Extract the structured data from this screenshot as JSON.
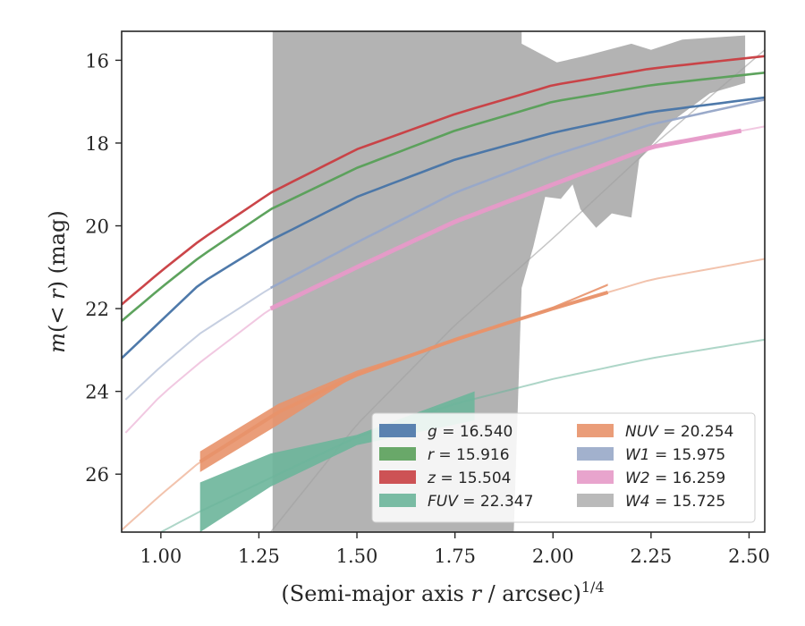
{
  "chart_data": {
    "type": "line",
    "xlabel": "(Semi-major axis r / arcsec)^1/4",
    "ylabel": "m(< r) (mag)",
    "xlim": [
      0.9,
      2.54
    ],
    "ylim": [
      27.4,
      15.3
    ],
    "y_inverted": true,
    "grid": false,
    "legend_location": "lower-right",
    "x_ticks": [
      "1.00",
      "1.25",
      "1.50",
      "1.75",
      "2.00",
      "2.25",
      "2.50"
    ],
    "y_ticks": [
      "16",
      "18",
      "20",
      "22",
      "24",
      "26"
    ],
    "series": [
      {
        "name": "g",
        "label_value": "16.540",
        "color": "#4a76a8",
        "mag_total": 16.54,
        "curve_x": [
          0.9,
          1.0,
          1.1,
          1.28,
          1.5,
          1.75,
          2.0,
          2.25,
          2.54
        ],
        "curve_y": [
          23.2,
          22.3,
          21.4,
          20.35,
          19.3,
          18.4,
          17.75,
          17.25,
          16.9
        ],
        "measured_x_range": [
          0.9,
          2.54
        ]
      },
      {
        "name": "r",
        "label_value": "15.916",
        "color": "#5aa05a",
        "mag_total": 15.916,
        "curve_x": [
          0.9,
          1.0,
          1.1,
          1.28,
          1.5,
          1.75,
          2.0,
          2.25,
          2.54
        ],
        "curve_y": [
          22.3,
          21.5,
          20.75,
          19.6,
          18.6,
          17.7,
          17.0,
          16.6,
          16.3
        ],
        "measured_x_range": [
          0.9,
          2.54
        ]
      },
      {
        "name": "z",
        "label_value": "15.504",
        "color": "#c94044",
        "mag_total": 15.504,
        "curve_x": [
          0.9,
          1.0,
          1.1,
          1.28,
          1.5,
          1.75,
          2.0,
          2.25,
          2.54
        ],
        "curve_y": [
          21.9,
          21.1,
          20.35,
          19.2,
          18.15,
          17.3,
          16.6,
          16.2,
          15.9
        ],
        "measured_x_range": [
          0.9,
          2.54
        ]
      },
      {
        "name": "FUV",
        "label_value": "22.347",
        "color": "#6bb59a",
        "mag_total": 22.347,
        "curve_x": [
          1.0,
          1.1,
          1.3,
          1.5,
          1.75,
          2.0,
          2.25,
          2.54
        ],
        "curve_y": [
          27.4,
          26.9,
          26.0,
          25.1,
          24.3,
          23.7,
          23.2,
          22.75
        ],
        "measured_x_range": [
          1.1,
          1.8
        ],
        "band_upper": [
          [
            1.1,
            26.2
          ],
          [
            1.28,
            25.5
          ],
          [
            1.5,
            25.05
          ],
          [
            1.8,
            24.0
          ]
        ],
        "band_lower": [
          [
            1.1,
            27.4
          ],
          [
            1.28,
            26.3
          ],
          [
            1.5,
            25.3
          ],
          [
            1.8,
            24.7
          ]
        ]
      },
      {
        "name": "NUV",
        "label_value": "20.254",
        "color": "#e8926a",
        "mag_total": 20.254,
        "curve_x": [
          0.9,
          1.0,
          1.1,
          1.3,
          1.5,
          1.75,
          2.0,
          2.25,
          2.54
        ],
        "curve_y": [
          27.35,
          26.5,
          25.7,
          24.5,
          23.6,
          22.75,
          22.0,
          21.3,
          20.8
        ],
        "measured_x_range": [
          1.1,
          2.14
        ],
        "band_upper": [
          [
            1.1,
            25.45
          ],
          [
            1.3,
            24.3
          ],
          [
            1.5,
            23.5
          ],
          [
            1.75,
            22.75
          ],
          [
            2.0,
            21.95
          ],
          [
            2.14,
            21.4
          ]
        ],
        "band_lower": [
          [
            1.1,
            25.95
          ],
          [
            1.3,
            24.8
          ],
          [
            1.5,
            23.6
          ],
          [
            1.75,
            22.8
          ],
          [
            2.0,
            22.0
          ],
          [
            2.14,
            21.45
          ]
        ]
      },
      {
        "name": "W1",
        "label_value": "15.975",
        "color": "#98a8c8",
        "mag_total": 15.975,
        "curve_x": [
          0.91,
          1.0,
          1.1,
          1.28,
          1.5,
          1.75,
          2.0,
          2.25,
          2.54
        ],
        "curve_y": [
          24.2,
          23.4,
          22.6,
          21.5,
          20.4,
          19.2,
          18.3,
          17.55,
          16.95
        ],
        "measured_x_range": [
          1.28,
          2.54
        ]
      },
      {
        "name": "W2",
        "label_value": "16.259",
        "color": "#e69ac8",
        "mag_total": 16.259,
        "curve_x": [
          0.91,
          1.0,
          1.1,
          1.28,
          1.5,
          1.75,
          2.0,
          2.25,
          2.54
        ],
        "curve_y": [
          25.0,
          24.1,
          23.3,
          22.0,
          21.0,
          19.9,
          19.0,
          18.1,
          17.6
        ],
        "measured_x_range": [
          1.28,
          2.48
        ]
      },
      {
        "name": "W4",
        "label_value": "15.725",
        "color": "#b3b3b3",
        "mag_total": 15.725,
        "curve_x": [
          0.9,
          1.28,
          1.5,
          1.75,
          2.0,
          2.25,
          2.54
        ],
        "curve_y": [
          27.4,
          27.4,
          24.8,
          22.4,
          20.3,
          18.1,
          15.75
        ],
        "region": [
          [
            1.285,
            15.3
          ],
          [
            1.92,
            15.3
          ],
          [
            1.92,
            15.6
          ],
          [
            2.01,
            16.05
          ],
          [
            2.08,
            15.9
          ],
          [
            2.2,
            15.6
          ],
          [
            2.25,
            15.75
          ],
          [
            2.33,
            15.5
          ],
          [
            2.49,
            15.4
          ],
          [
            2.49,
            16.55
          ],
          [
            2.4,
            16.8
          ],
          [
            2.3,
            17.5
          ],
          [
            2.22,
            18.4
          ],
          [
            2.2,
            19.8
          ],
          [
            2.15,
            19.7
          ],
          [
            2.11,
            20.05
          ],
          [
            2.07,
            19.6
          ],
          [
            2.05,
            19.0
          ],
          [
            2.02,
            19.35
          ],
          [
            1.98,
            19.3
          ],
          [
            1.95,
            20.5
          ],
          [
            1.92,
            21.5
          ],
          [
            1.9,
            27.4
          ],
          [
            1.285,
            27.4
          ]
        ]
      }
    ]
  }
}
